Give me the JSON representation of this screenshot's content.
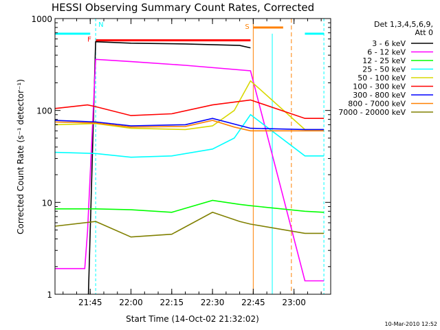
{
  "chart_data": {
    "type": "line",
    "title": "HESSI Observing Summary Count Rates, Corrected",
    "xlabel": "Start Time (14-Oct-02 21:32:02)",
    "ylabel": "Corrected Count Rate (s⁻¹ detector⁻¹)",
    "yscale": "log",
    "ylim": [
      1,
      1000
    ],
    "xlim": [
      "21:32:02",
      "23:13:30"
    ],
    "x_ticks": [
      "21:45",
      "22:00",
      "22:15",
      "22:30",
      "22:45",
      "23:00"
    ],
    "y_ticks": [
      "1",
      "10",
      "100",
      "1000"
    ],
    "legend_title": [
      "Det 1,3,4,5,6,9,",
      "Att 0"
    ],
    "legend_position": "right",
    "footer": "10-Mar-2010 12:52",
    "series": [
      {
        "name": "3 - 6 keV",
        "color": "#000000",
        "x": [
          "21:44:20",
          "21:47:00",
          "22:00:00",
          "22:20:00",
          "22:40:00",
          "22:44:00"
        ],
        "values": [
          1,
          560,
          540,
          530,
          510,
          480
        ]
      },
      {
        "name": "6 - 12 keV",
        "color": "#ff00ff",
        "x": [
          "21:32:02",
          "21:43:00",
          "21:44:00",
          "21:47:00",
          "22:00:00",
          "22:20:00",
          "22:44:00",
          "23:04:00",
          "23:11:00"
        ],
        "values": [
          1.9,
          1.9,
          4.8,
          360,
          340,
          310,
          270,
          1.4,
          1.4
        ]
      },
      {
        "name": "12 - 25 keV",
        "color": "#00ff00",
        "x": [
          "21:32:02",
          "21:47:00",
          "22:00:00",
          "22:15:00",
          "22:30:00",
          "22:40:00",
          "22:44:00",
          "23:04:00",
          "23:11:00"
        ],
        "values": [
          8.5,
          8.5,
          8.3,
          7.8,
          10.5,
          9.5,
          9.2,
          8,
          7.8
        ]
      },
      {
        "name": "25 - 50 keV",
        "color": "#00ffff",
        "x": [
          "21:32:02",
          "21:47:00",
          "22:00:00",
          "22:15:00",
          "22:30:00",
          "22:38:00",
          "22:44:00",
          "23:04:00",
          "23:11:00"
        ],
        "values": [
          35,
          34,
          31,
          32,
          38,
          50,
          90,
          32,
          32
        ]
      },
      {
        "name": "50 - 100 keV",
        "color": "#d8d800",
        "x": [
          "21:32:02",
          "21:47:00",
          "22:00:00",
          "22:20:00",
          "22:30:00",
          "22:38:00",
          "22:44:00",
          "23:04:00",
          "23:11:00"
        ],
        "values": [
          70,
          72,
          64,
          62,
          68,
          100,
          210,
          62,
          62
        ]
      },
      {
        "name": "100 - 300 keV",
        "color": "#ff0000",
        "x": [
          "21:32:02",
          "21:44:00",
          "21:47:00",
          "22:00:00",
          "22:15:00",
          "22:30:00",
          "22:44:00",
          "23:04:00",
          "23:11:00"
        ],
        "values": [
          105,
          115,
          110,
          88,
          92,
          115,
          130,
          82,
          82
        ]
      },
      {
        "name": "300 - 800 keV",
        "color": "#0000ff",
        "x": [
          "21:32:02",
          "21:47:00",
          "22:00:00",
          "22:20:00",
          "22:30:00",
          "22:44:00",
          "23:04:00",
          "23:11:00"
        ],
        "values": [
          78,
          75,
          68,
          70,
          82,
          64,
          62,
          62
        ]
      },
      {
        "name": "800 - 7000 keV",
        "color": "#ff8000",
        "x": [
          "21:32:02",
          "21:47:00",
          "22:00:00",
          "22:20:00",
          "22:30:00",
          "22:38:00",
          "22:44:00",
          "23:04:00",
          "23:11:00"
        ],
        "values": [
          75,
          73,
          66,
          67,
          78,
          66,
          60,
          60,
          60
        ]
      },
      {
        "name": "7000 - 20000 keV",
        "color": "#808000",
        "x": [
          "21:32:02",
          "21:47:00",
          "22:00:00",
          "22:15:00",
          "22:30:00",
          "22:40:00",
          "22:44:00",
          "23:04:00",
          "23:11:00"
        ],
        "values": [
          5.5,
          6.2,
          4.2,
          4.5,
          7.8,
          6.2,
          5.8,
          4.6,
          4.6
        ]
      }
    ],
    "annotations": [
      {
        "label": "F",
        "color": "#ff0000",
        "x_start": "21:47:00",
        "x_end": "22:44:00",
        "y": 580
      },
      {
        "label": "N",
        "color": "#00ffff",
        "x": "21:47:00"
      },
      {
        "label": "S",
        "color": "#ff8000",
        "x_start": "22:45:00",
        "x_end": "22:56:00",
        "y": 800
      }
    ]
  }
}
